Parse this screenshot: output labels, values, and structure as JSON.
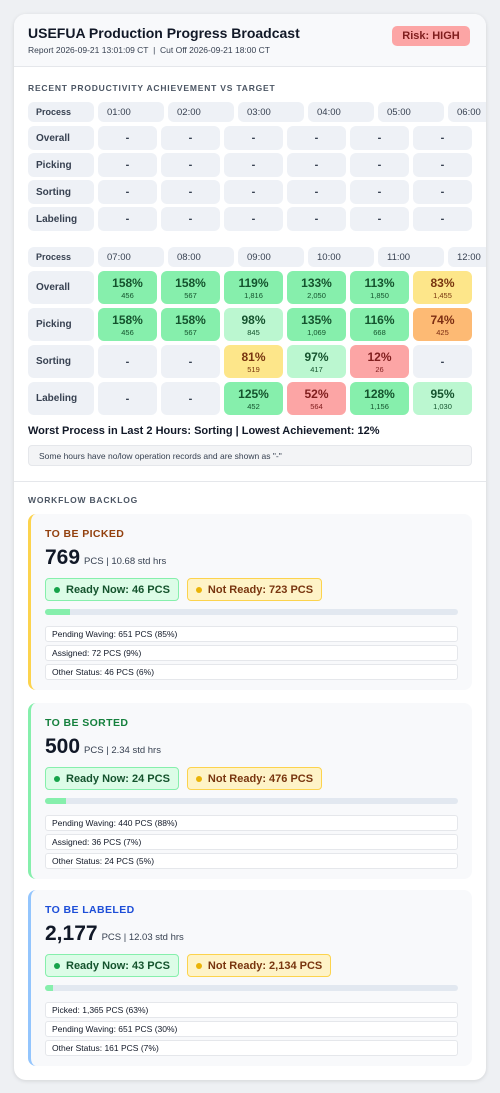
{
  "header": {
    "title": "USEFUA Production Progress Broadcast",
    "subtitle": "Report 2026-09-21 13:01:09 CT  |  Cut Off 2026-09-21 18:00 CT",
    "risk": "Risk: HIGH"
  },
  "productivity": {
    "title": "RECENT PRODUCTIVITY ACHIEVEMENT VS TARGET",
    "tables": [
      {
        "corner": "Process",
        "hours": [
          "01:00",
          "02:00",
          "03:00",
          "04:00",
          "05:00",
          "06:00"
        ],
        "rows": [
          {
            "name": "Overall",
            "cells": [
              {
                "value": "-"
              },
              {
                "value": "-"
              },
              {
                "value": "-"
              },
              {
                "value": "-"
              },
              {
                "value": "-"
              },
              {
                "value": "-"
              }
            ]
          },
          {
            "name": "Picking",
            "cells": [
              {
                "value": "-"
              },
              {
                "value": "-"
              },
              {
                "value": "-"
              },
              {
                "value": "-"
              },
              {
                "value": "-"
              },
              {
                "value": "-"
              }
            ]
          },
          {
            "name": "Sorting",
            "cells": [
              {
                "value": "-"
              },
              {
                "value": "-"
              },
              {
                "value": "-"
              },
              {
                "value": "-"
              },
              {
                "value": "-"
              },
              {
                "value": "-"
              }
            ]
          },
          {
            "name": "Labeling",
            "cells": [
              {
                "value": "-"
              },
              {
                "value": "-"
              },
              {
                "value": "-"
              },
              {
                "value": "-"
              },
              {
                "value": "-"
              },
              {
                "value": "-"
              }
            ]
          }
        ]
      },
      {
        "corner": "Process",
        "hours": [
          "07:00",
          "08:00",
          "09:00",
          "10:00",
          "11:00",
          "12:00"
        ],
        "rows": [
          {
            "name": "Overall",
            "cells": [
              {
                "value": "158%",
                "count": "456",
                "color": "#86efac"
              },
              {
                "value": "158%",
                "count": "567",
                "color": "#86efac"
              },
              {
                "value": "119%",
                "count": "1,816",
                "color": "#86efac"
              },
              {
                "value": "133%",
                "count": "2,050",
                "color": "#86efac"
              },
              {
                "value": "113%",
                "count": "1,850",
                "color": "#86efac"
              },
              {
                "value": "83%",
                "count": "1,455",
                "color": "#fde68a"
              }
            ]
          },
          {
            "name": "Picking",
            "cells": [
              {
                "value": "158%",
                "count": "456",
                "color": "#86efac"
              },
              {
                "value": "158%",
                "count": "567",
                "color": "#86efac"
              },
              {
                "value": "98%",
                "count": "845",
                "color": "#bbf7d0"
              },
              {
                "value": "135%",
                "count": "1,069",
                "color": "#86efac"
              },
              {
                "value": "116%",
                "count": "668",
                "color": "#86efac"
              },
              {
                "value": "74%",
                "count": "425",
                "color": "#fdba74"
              }
            ]
          },
          {
            "name": "Sorting",
            "cells": [
              {
                "value": "-"
              },
              {
                "value": "-"
              },
              {
                "value": "81%",
                "count": "519",
                "color": "#fde68a"
              },
              {
                "value": "97%",
                "count": "417",
                "color": "#bbf7d0"
              },
              {
                "value": "12%",
                "count": "26",
                "color": "#fca5a5"
              },
              {
                "value": "-"
              }
            ]
          },
          {
            "name": "Labeling",
            "cells": [
              {
                "value": "-"
              },
              {
                "value": "-"
              },
              {
                "value": "125%",
                "count": "452",
                "color": "#86efac"
              },
              {
                "value": "52%",
                "count": "564",
                "color": "#fca5a5"
              },
              {
                "value": "128%",
                "count": "1,156",
                "color": "#86efac"
              },
              {
                "value": "95%",
                "count": "1,030",
                "color": "#bbf7d0"
              }
            ]
          }
        ]
      }
    ],
    "summary": "Worst Process in Last 2 Hours: Sorting | Lowest Achievement: 12%",
    "note": "Some hours have no/low operation records and are shown as \"-\""
  },
  "backlog": {
    "title": "WORKFLOW BACKLOG",
    "cards": [
      {
        "title": "TO BE PICKED",
        "accent": "#fcd34d",
        "title_color": "#92400e",
        "total": "769",
        "unit": "PCS | 10.68 std hrs",
        "ready": "Ready Now: 46 PCS",
        "not_ready": "Not Ready: 723 PCS",
        "items": [
          "Pending Waving: 651 PCS (85%)",
          "Assigned: 72 PCS (9%)",
          "Other Status: 46 PCS (6%)"
        ]
      },
      {
        "title": "TO BE SORTED",
        "accent": "#86efac",
        "title_color": "#15803d",
        "total": "500",
        "unit": "PCS | 2.34 std hrs",
        "ready": "Ready Now: 24 PCS",
        "not_ready": "Not Ready: 476 PCS",
        "items": [
          "Pending Waving: 440 PCS (88%)",
          "Assigned: 36 PCS (7%)",
          "Other Status: 24 PCS (5%)"
        ]
      },
      {
        "title": "TO BE LABELED",
        "accent": "#93c5fd",
        "title_color": "#1d4ed8",
        "total": "2,177",
        "unit": "PCS | 12.03 std hrs",
        "ready": "Ready Now: 43 PCS",
        "not_ready": "Not Ready: 2,134 PCS",
        "items": [
          "Picked: 1,365 PCS (63%)",
          "Pending Waving: 651 PCS (30%)",
          "Other Status: 161 PCS (7%)"
        ]
      }
    ]
  }
}
